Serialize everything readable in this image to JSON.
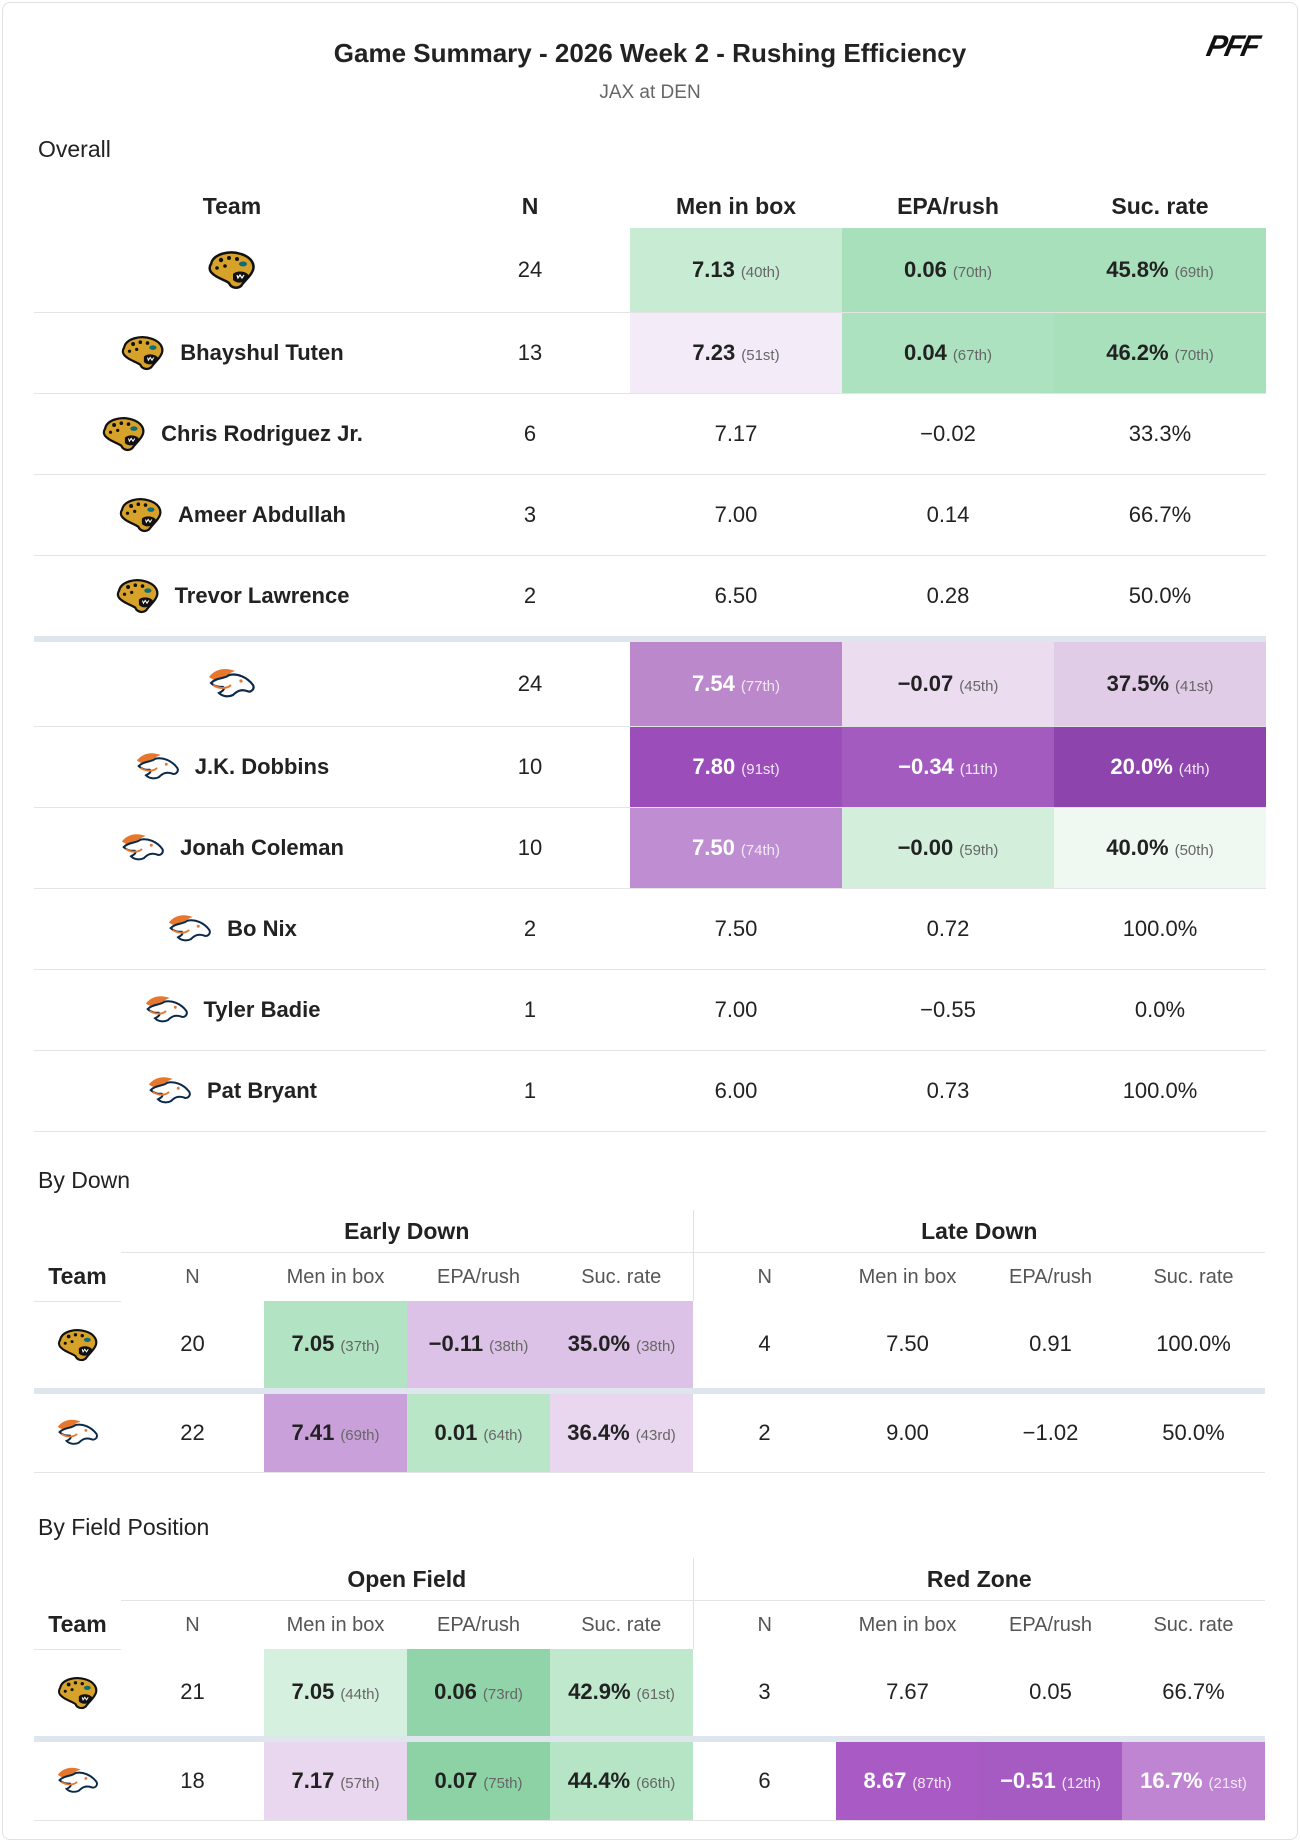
{
  "header": {
    "title": "Game Summary - 2026 Week 2 - Rushing Efficiency",
    "subtitle": "JAX at DEN",
    "logo": "PFF"
  },
  "overall": {
    "title": "Overall",
    "columns": [
      "Team",
      "N",
      "Men in box",
      "EPA/rush",
      "Suc. rate"
    ],
    "groups": [
      {
        "rows": [
          {
            "cells": [
              "24",
              {
                "text": "7.13",
                "rank": "(40th)",
                "bg": "#c8ebd4"
              },
              {
                "text": "0.06",
                "rank": "(70th)",
                "bg": "#a8e0bb"
              },
              {
                "text": "45.8%",
                "rank": "(69th)",
                "bg": "#a8e0bb"
              }
            ]
          },
          {
            "name": "Bhayshul Tuten",
            "cells": [
              "13",
              {
                "text": "7.23",
                "rank": "(51st)",
                "bg": "#f3ecf8"
              },
              {
                "text": "0.04",
                "rank": "(67th)",
                "bg": "#ace2bf"
              },
              {
                "text": "46.2%",
                "rank": "(70th)",
                "bg": "#a8e0bb"
              }
            ]
          },
          {
            "name": "Chris Rodriguez Jr.",
            "cells": [
              "6",
              "7.17",
              "−0.02",
              "33.3%"
            ]
          },
          {
            "name": "Ameer Abdullah",
            "cells": [
              "3",
              "7.00",
              "0.14",
              "66.7%"
            ]
          },
          {
            "name": "Trevor Lawrence",
            "cells": [
              "2",
              "6.50",
              "0.28",
              "50.0%"
            ]
          }
        ]
      },
      {
        "rows": [
          {
            "cells": [
              "24",
              {
                "text": "7.54",
                "rank": "(77th)",
                "bg": "#bb88cc"
              },
              {
                "text": "−0.07",
                "rank": "(45th)",
                "bg": "#ebdcef"
              },
              {
                "text": "37.5%",
                "rank": "(41st)",
                "bg": "#e1cce8"
              }
            ]
          },
          {
            "name": "J.K. Dobbins",
            "cells": [
              "10",
              {
                "text": "7.80",
                "rank": "(91st)",
                "bg": "#9b4dba"
              },
              {
                "text": "−0.34",
                "rank": "(11th)",
                "bg": "#a35bc0"
              },
              {
                "text": "20.0%",
                "rank": "(4th)",
                "bg": "#8e44ad"
              }
            ]
          },
          {
            "name": "Jonah Coleman",
            "cells": [
              "10",
              {
                "text": "7.50",
                "rank": "(74th)",
                "bg": "#bf8dd1"
              },
              {
                "text": "−0.00",
                "rank": "(59th)",
                "bg": "#d3efdc"
              },
              {
                "text": "40.0%",
                "rank": "(50th)",
                "bg": "#f0f8f2"
              }
            ]
          },
          {
            "name": "Bo Nix",
            "cells": [
              "2",
              "7.50",
              "0.72",
              "100.0%"
            ]
          },
          {
            "name": "Tyler Badie",
            "cells": [
              "1",
              "7.00",
              "−0.55",
              "0.0%"
            ]
          },
          {
            "name": "Pat Bryant",
            "cells": [
              "1",
              "6.00",
              "0.73",
              "100.0%"
            ]
          }
        ]
      }
    ]
  },
  "by_down": {
    "title": "By Down",
    "team_label": "Team",
    "splits": [
      {
        "title": "Early Down",
        "columns": [
          "N",
          "Men in box",
          "EPA/rush",
          "Suc. rate"
        ]
      },
      {
        "title": "Late Down",
        "columns": [
          "N",
          "Men in box",
          "EPA/rush",
          "Suc. rate"
        ]
      }
    ],
    "rows": [
      {
        "cells": [
          "20",
          {
            "text": "7.05",
            "rank": "(37th)",
            "bg": "#b2e4c3"
          },
          {
            "text": "−0.11",
            "rank": "(38th)",
            "bg": "#dcc2e6"
          },
          {
            "text": "35.0%",
            "rank": "(38th)",
            "bg": "#dcc2e6"
          },
          "4",
          "7.50",
          "0.91",
          "100.0%"
        ]
      },
      {
        "cells": [
          "22",
          {
            "text": "7.41",
            "rank": "(69th)",
            "bg": "#c9a0da"
          },
          {
            "text": "0.01",
            "rank": "(64th)",
            "bg": "#b8e6c7"
          },
          {
            "text": "36.4%",
            "rank": "(43rd)",
            "bg": "#e8d7ef"
          },
          "2",
          "9.00",
          "−1.02",
          "50.0%"
        ]
      }
    ]
  },
  "by_field_position": {
    "title": "By Field Position",
    "team_label": "Team",
    "splits": [
      {
        "title": "Open Field",
        "columns": [
          "N",
          "Men in box",
          "EPA/rush",
          "Suc. rate"
        ]
      },
      {
        "title": "Red Zone",
        "columns": [
          "N",
          "Men in box",
          "EPA/rush",
          "Suc. rate"
        ]
      }
    ],
    "rows": [
      {
        "cells": [
          "21",
          {
            "text": "7.05",
            "rank": "(44th)",
            "bg": "#d5f0de"
          },
          {
            "text": "0.06",
            "rank": "(73rd)",
            "bg": "#92d4a9"
          },
          {
            "text": "42.9%",
            "rank": "(61st)",
            "bg": "#bfe8cc"
          },
          "3",
          "7.67",
          "0.05",
          "66.7%"
        ]
      },
      {
        "cells": [
          "18",
          {
            "text": "7.17",
            "rank": "(57th)",
            "bg": "#e8d7ef"
          },
          {
            "text": "0.07",
            "rank": "(75th)",
            "bg": "#8dd2a5"
          },
          {
            "text": "44.4%",
            "rank": "(66th)",
            "bg": "#b5e5c4"
          },
          "6",
          {
            "text": "8.67",
            "rank": "(87th)",
            "bg": "#a95ac4"
          },
          {
            "text": "−0.51",
            "rank": "(12th)",
            "bg": "#a55bc2"
          },
          {
            "text": "16.7%",
            "rank": "(21st)",
            "bg": "#bf85d3"
          }
        ]
      }
    ]
  }
}
